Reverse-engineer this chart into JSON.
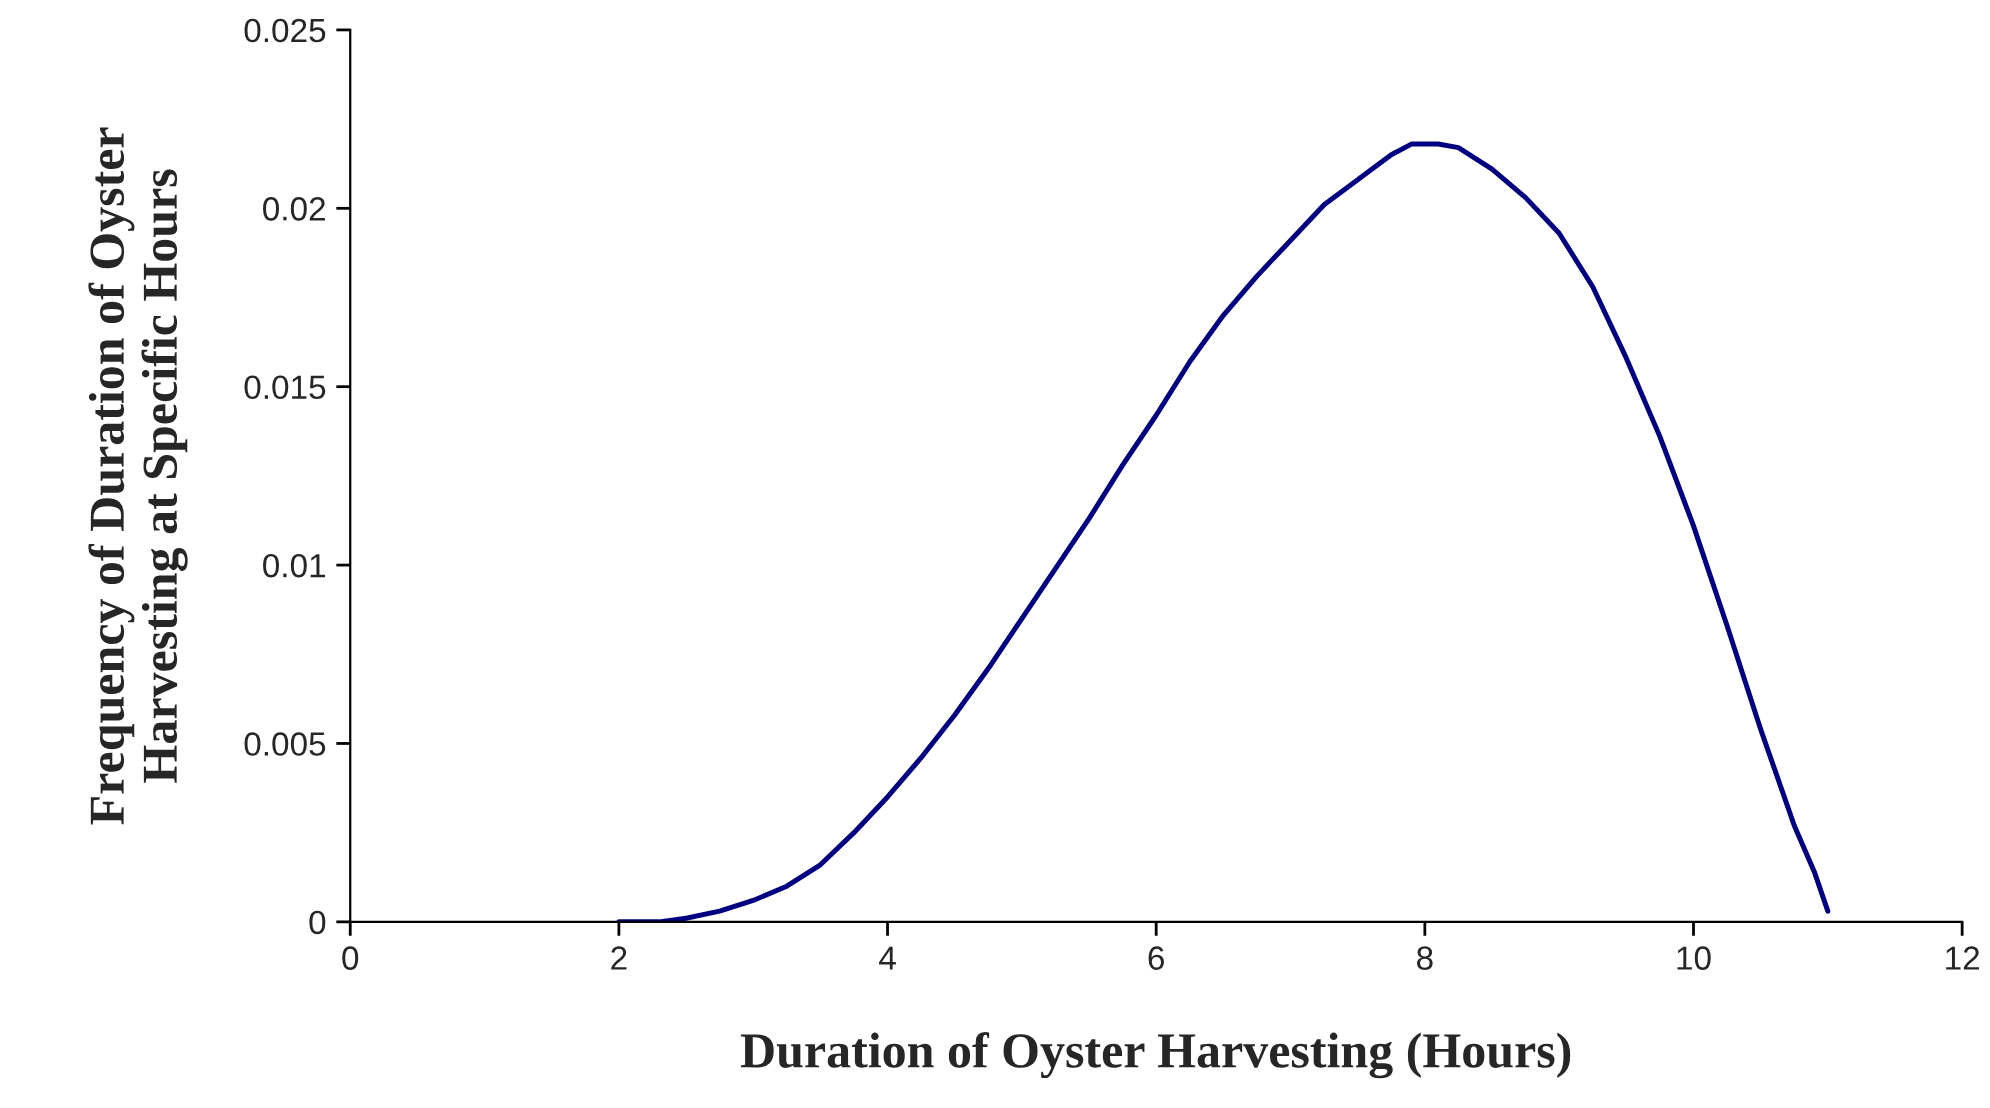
{
  "chart_data": {
    "type": "line",
    "xlabel": "Duration of Oyster Harvesting (Hours)",
    "ylabel": "Frequency of Duration of Oyster\nHarvesting at Specific Hours",
    "series": [
      {
        "color": "#000080",
        "x": [
          2,
          2.3,
          2.5,
          2.75,
          3,
          3.25,
          3.5,
          3.75,
          4,
          4.25,
          4.5,
          4.75,
          5,
          5.25,
          5.5,
          5.75,
          6,
          6.25,
          6.5,
          6.75,
          7,
          7.25,
          7.5,
          7.75,
          7.9,
          8.1,
          8.25,
          8.5,
          8.75,
          9,
          9.25,
          9.5,
          9.75,
          10,
          10.25,
          10.5,
          10.75,
          10.9,
          11
        ],
        "values": [
          0,
          0,
          0.0001,
          0.0003,
          0.0006,
          0.001,
          0.0016,
          0.0025,
          0.0035,
          0.0046,
          0.0058,
          0.0071,
          0.0085,
          0.0099,
          0.0113,
          0.0128,
          0.0142,
          0.0157,
          0.017,
          0.0181,
          0.0191,
          0.0201,
          0.0208,
          0.0215,
          0.0218,
          0.0218,
          0.0217,
          0.0211,
          0.0203,
          0.0193,
          0.0178,
          0.0158,
          0.0136,
          0.0111,
          0.0083,
          0.0054,
          0.0027,
          0.0014,
          0.0003
        ]
      }
    ],
    "xlim": [
      0,
      12
    ],
    "xticks": [
      0,
      2,
      4,
      6,
      8,
      10,
      12
    ],
    "ylim": [
      0,
      0.025
    ],
    "yticks": [
      0,
      0.005,
      0.01,
      0.015,
      0.02,
      0.025
    ],
    "grid": false,
    "legend": false,
    "marker": "none",
    "line_style": "solid"
  }
}
